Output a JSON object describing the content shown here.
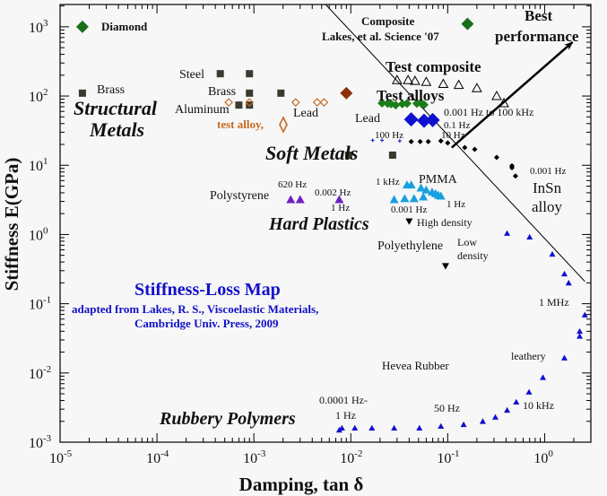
{
  "chart_data": {
    "type": "scatter",
    "title": "Stiffness-Loss Map",
    "subtitle": [
      "adapted from Lakes, R. S., Viscoelastic Materials,",
      "Cambridge Univ. Press, 2009"
    ],
    "xlabel": "Damping, tan δ",
    "ylabel": "Stiffness E(GPa)",
    "xscale": "log",
    "yscale": "log",
    "xlim": [
      1e-05,
      3
    ],
    "ylim": [
      0.001,
      2100
    ],
    "grid": false,
    "x_ticks": [
      {
        "base": "10",
        "exp": "-5"
      },
      {
        "base": "10",
        "exp": "-4"
      },
      {
        "base": "10",
        "exp": "-3"
      },
      {
        "base": "10",
        "exp": "-2"
      },
      {
        "base": "10",
        "exp": "-1"
      },
      {
        "base": "10",
        "exp": "0"
      }
    ],
    "y_ticks": [
      {
        "base": "10",
        "exp": "3"
      },
      {
        "base": "10",
        "exp": "2"
      },
      {
        "base": "10",
        "exp": "1"
      },
      {
        "base": "10",
        "exp": "0"
      },
      {
        "base": "10",
        "exp": "-1"
      },
      {
        "base": "10",
        "exp": "-2"
      },
      {
        "base": "10",
        "exp": "-3"
      }
    ],
    "series": [
      {
        "name": "Diamond",
        "marker": "diamond",
        "color": "#1a6e1a",
        "size": 7,
        "points": [
          [
            1.7e-05,
            1000
          ]
        ]
      },
      {
        "name": "Composite Lakes, et al. Science '07",
        "marker": "diamond",
        "color": "#1a6e1a",
        "size": 7,
        "points": [
          [
            0.16,
            1100
          ]
        ]
      },
      {
        "name": "Structural Metals",
        "marker": "square",
        "color": "#3a3a30",
        "size": 4,
        "points": [
          [
            1.7e-05,
            110
          ],
          [
            0.00045,
            210
          ],
          [
            0.0009,
            210
          ],
          [
            0.0009,
            110
          ],
          [
            0.0019,
            110
          ],
          [
            0.0007,
            74
          ],
          [
            0.0009,
            74
          ],
          [
            0.0095,
            14
          ],
          [
            0.027,
            14
          ]
        ]
      },
      {
        "name": "test alloy",
        "marker": "open-diamond",
        "color": "#c8681e",
        "size": 4,
        "points": [
          [
            0.00055,
            81
          ],
          [
            0.0009,
            81
          ],
          [
            0.0027,
            81
          ],
          [
            0.0045,
            81
          ],
          [
            0.0053,
            81
          ]
        ]
      },
      {
        "name": "Lead",
        "marker": "diamond",
        "color": "#8b2e0a",
        "size": 7,
        "points": [
          [
            0.009,
            110
          ]
        ]
      },
      {
        "name": "Test composite",
        "marker": "open-triangle",
        "color": "#000000",
        "size": 5,
        "points": [
          [
            0.03,
            170
          ],
          [
            0.039,
            170
          ],
          [
            0.046,
            166
          ],
          [
            0.06,
            160
          ],
          [
            0.09,
            150
          ],
          [
            0.13,
            145
          ],
          [
            0.2,
            130
          ],
          [
            0.32,
            100
          ],
          [
            0.38,
            79
          ]
        ]
      },
      {
        "name": "Test alloys",
        "marker": "diamond",
        "color": "#1a7e1a",
        "size": 5,
        "points": [
          [
            0.021,
            79
          ],
          [
            0.024,
            78
          ],
          [
            0.026,
            77
          ],
          [
            0.029,
            74
          ],
          [
            0.034,
            77
          ],
          [
            0.038,
            78
          ],
          [
            0.048,
            78
          ],
          [
            0.053,
            79
          ],
          [
            0.057,
            75
          ]
        ]
      },
      {
        "name": "Test alloys 0.1 Hz",
        "marker": "diamond",
        "color": "#1010d0",
        "size": 8,
        "points": [
          [
            0.042,
            46
          ],
          [
            0.057,
            44
          ],
          [
            0.07,
            45
          ]
        ]
      },
      {
        "name": "Soft metals 100 Hz",
        "marker": "plus",
        "color": "#1010d0",
        "size": 2,
        "points": [
          [
            0.0168,
            23
          ],
          [
            0.021,
            23
          ],
          [
            0.032,
            22.5
          ]
        ]
      },
      {
        "name": "InSn alloy",
        "marker": "small-diamond",
        "color": "#000000",
        "size": 3,
        "points": [
          [
            0.042,
            22
          ],
          [
            0.052,
            22
          ],
          [
            0.063,
            22
          ],
          [
            0.085,
            22.5
          ],
          [
            0.1,
            21
          ],
          [
            0.15,
            18
          ],
          [
            0.19,
            17
          ],
          [
            0.32,
            13
          ],
          [
            0.46,
            9.8
          ],
          [
            0.46,
            9.2
          ],
          [
            0.5,
            7
          ]
        ]
      },
      {
        "name": "PMMA",
        "marker": "triangle",
        "color": "#1aa0e0",
        "size": 5,
        "points": [
          [
            0.038,
            5.2
          ],
          [
            0.042,
            5.2
          ],
          [
            0.053,
            4.7
          ],
          [
            0.06,
            4.4
          ],
          [
            0.069,
            4.1
          ],
          [
            0.075,
            3.9
          ],
          [
            0.085,
            3.6
          ],
          [
            0.08,
            3.7
          ],
          [
            0.028,
            3.2
          ],
          [
            0.036,
            3.3
          ],
          [
            0.045,
            3.3
          ],
          [
            0.056,
            3.5
          ]
        ]
      },
      {
        "name": "Polystyrene",
        "marker": "triangle",
        "color": "#7020c0",
        "size": 5,
        "points": [
          [
            0.0024,
            3.2
          ],
          [
            0.003,
            3.2
          ],
          [
            0.0076,
            3.2
          ]
        ]
      },
      {
        "name": "Polyethylene",
        "marker": "inv-triangle",
        "color": "#000000",
        "size": 4,
        "points": [
          [
            0.04,
            1.55
          ],
          [
            0.095,
            0.35
          ]
        ]
      },
      {
        "name": "Hevea Rubber",
        "marker": "triangle",
        "color": "#1010d0",
        "size": 3.5,
        "points": [
          [
            0.0076,
            0.0015
          ],
          [
            0.0081,
            0.0016
          ],
          [
            0.011,
            0.0016
          ],
          [
            0.0165,
            0.0016
          ],
          [
            0.028,
            0.0016
          ],
          [
            0.051,
            0.0016
          ],
          [
            0.085,
            0.0017
          ],
          [
            0.146,
            0.0018
          ],
          [
            0.23,
            0.002
          ],
          [
            0.31,
            0.0023
          ],
          [
            0.41,
            0.0029
          ],
          [
            0.51,
            0.0038
          ],
          [
            0.69,
            0.0053
          ],
          [
            0.96,
            0.0086
          ],
          [
            1.6,
            0.0165
          ],
          [
            2.3,
            0.034
          ],
          [
            2.3,
            0.04
          ],
          [
            2.6,
            0.069
          ],
          [
            1.77,
            0.2
          ],
          [
            1.6,
            0.27
          ],
          [
            1.2,
            0.52
          ],
          [
            0.7,
            0.92
          ],
          [
            0.41,
            1.04
          ]
        ]
      }
    ],
    "lines": [
      {
        "name": "diagonal-boundary",
        "points": [
          [
            0.0055,
            2100
          ],
          [
            2.6,
            0.21
          ]
        ],
        "arrow": false
      },
      {
        "name": "best-performance-arrow",
        "points": [
          [
            0.11,
            18
          ],
          [
            1.94,
            600
          ]
        ],
        "arrow": true
      }
    ],
    "annotations": {
      "diamond": "Diamond",
      "composite": "Composite",
      "lakes": "Lakes, et al. Science '07",
      "best": "Best",
      "performance": "performance",
      "test_composite": "Test composite",
      "test_alloys": "Test alloys",
      "freq_range": "0.001 Hz to 100 kHz",
      "hz01": "0.1 Hz",
      "lead1": "Lead",
      "lead2": "Lead",
      "steel": "Steel",
      "brass1": "Brass",
      "brass2": "Brass",
      "aluminum": "Aluminum",
      "test_alloy": "test alloy,",
      "structural": "Structural",
      "metals": "Metals",
      "soft_metals": "Soft Metals",
      "hz100": "100 Hz",
      "hz10": "10 Hz",
      "insn_hz": "0.001 Hz",
      "insn": "InSn",
      "alloy": "alloy",
      "khz1": "1 kHz",
      "pmma": "PMMA",
      "pmma_1hz": "1 Hz",
      "pmma_0001": "0.001 Hz",
      "hz620": "620 Hz",
      "polystyrene": "Polystyrene",
      "ps_0002": "0.002 Hz",
      "ps_1hz": "1 Hz",
      "hard_plastics": "Hard Plastics",
      "high_density": "High density",
      "polyethylene": "Polyethylene",
      "low": "Low",
      "density": "density",
      "mhz1": "1 MHz",
      "leathery": "leathery",
      "hevea": "Hevea Rubber",
      "hz00001": "0.0001 Hz-",
      "rub_1hz": "1 Hz",
      "hz50": "50 Hz",
      "khz10": "10 kHz",
      "rubbery": "Rubbery Polymers"
    }
  }
}
